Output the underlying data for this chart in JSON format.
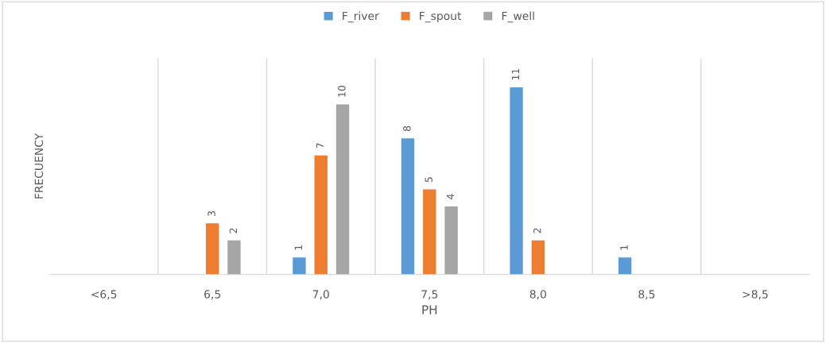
{
  "chart_data": {
    "type": "bar",
    "xlabel": "PH",
    "ylabel": "FRECUENCY",
    "categories": [
      "<6,5",
      "6,5",
      "7,0",
      "7,5",
      "8,0",
      "8,5",
      ">8,5"
    ],
    "series": [
      {
        "name": "F_river",
        "color": "#5b9bd5",
        "values": [
          null,
          null,
          1,
          8,
          11,
          1,
          null
        ]
      },
      {
        "name": "F_spout",
        "color": "#ed7d31",
        "values": [
          null,
          3,
          7,
          5,
          2,
          null,
          null
        ]
      },
      {
        "name": "F_well",
        "color": "#a5a5a5",
        "values": [
          null,
          2,
          10,
          4,
          null,
          null,
          null
        ]
      }
    ],
    "data_labels": true,
    "grid": "x",
    "legend": "top",
    "tick_labels": "x"
  }
}
